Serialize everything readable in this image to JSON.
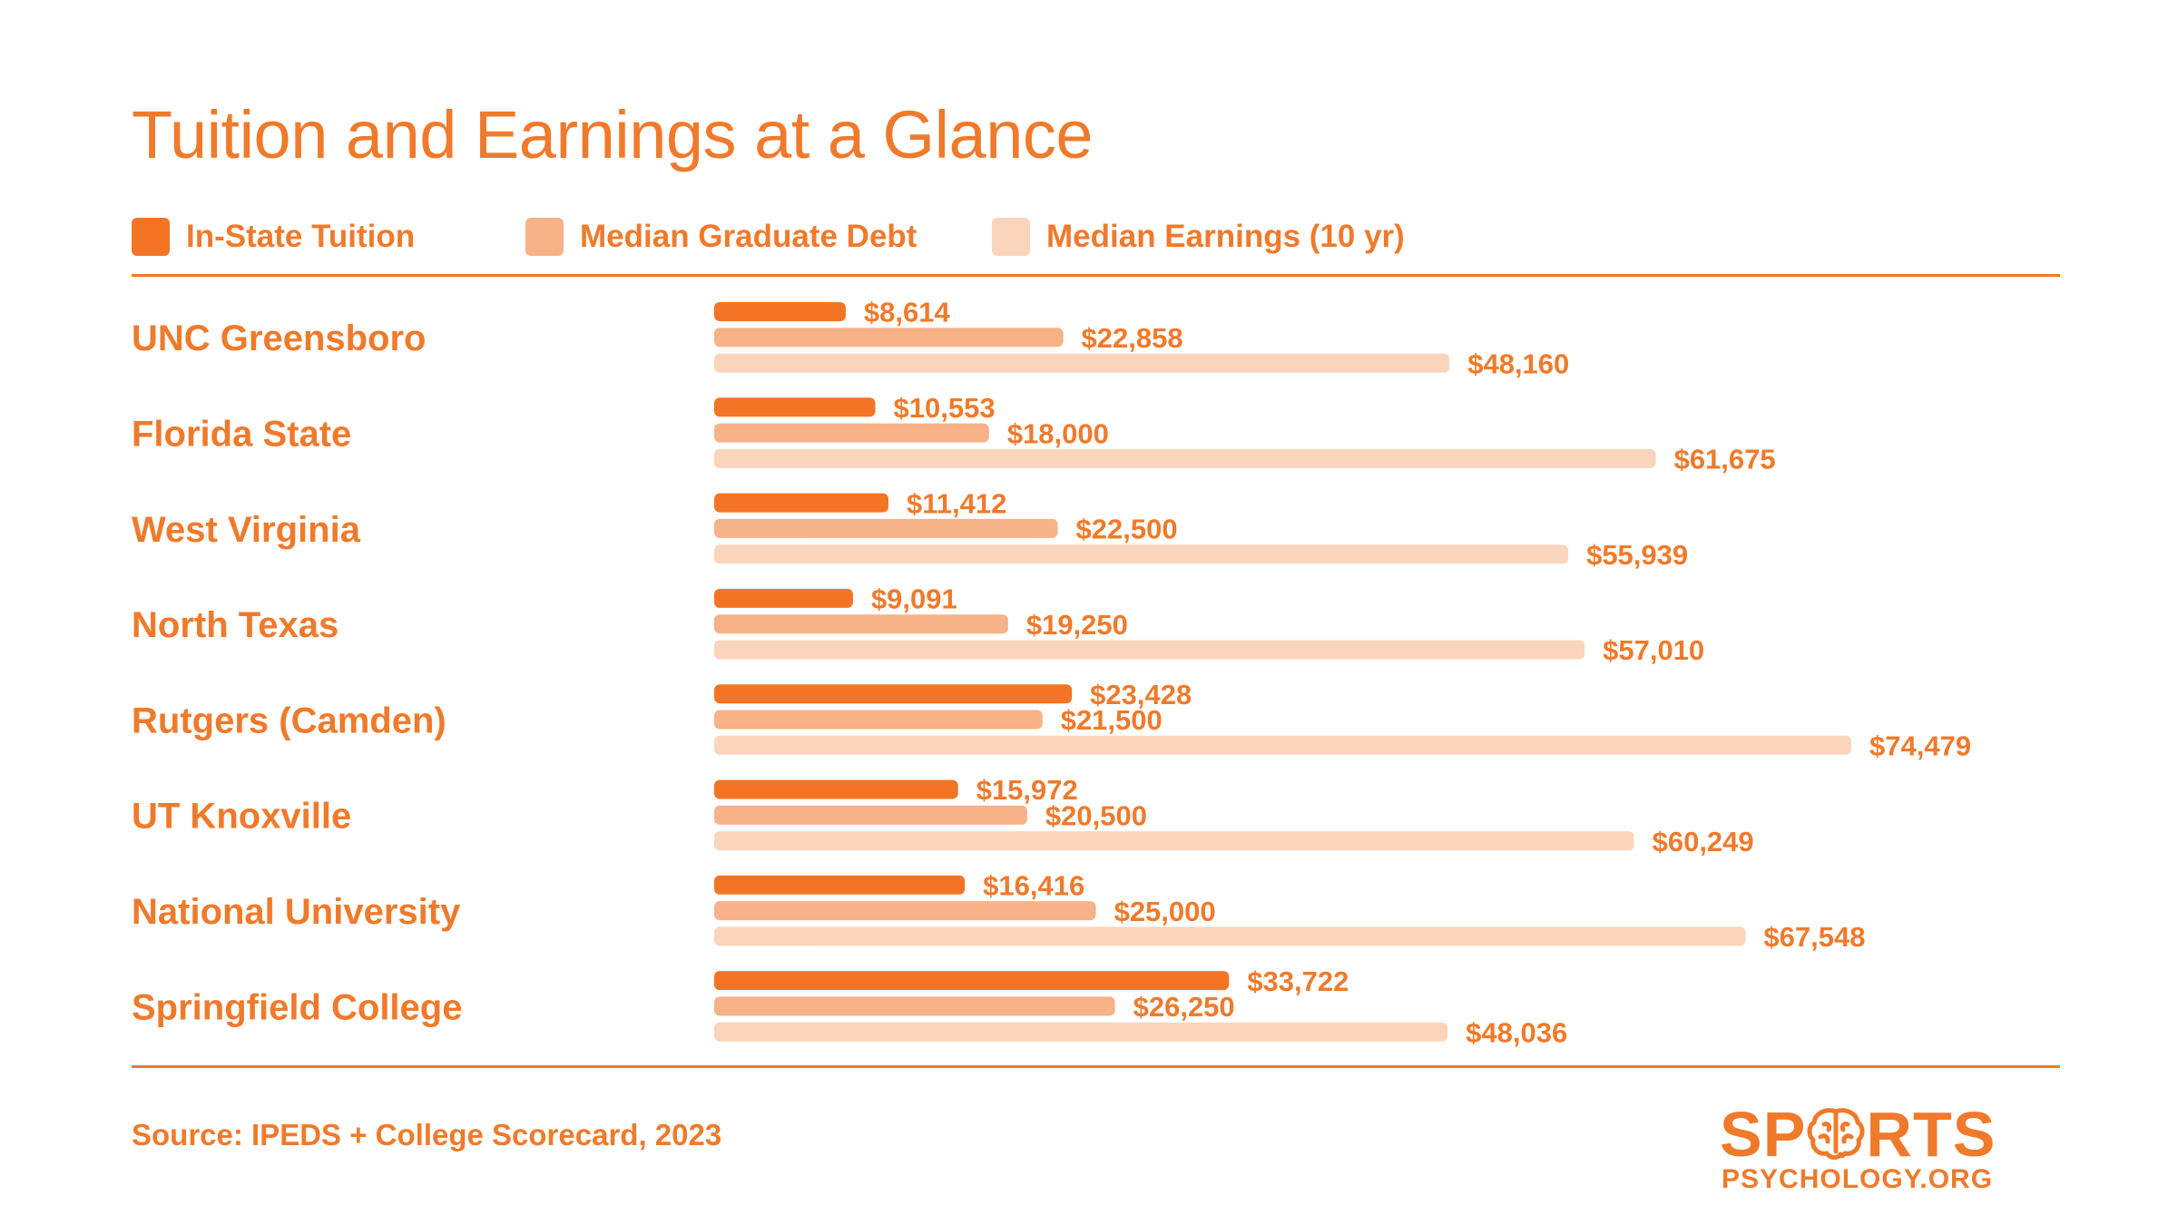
{
  "colors": {
    "accent": "#f07a2b",
    "in_state_tuition": "#f47425",
    "median_graduate_debt": "#f7b288",
    "median_earnings": "#fbd4bc"
  },
  "footer": {
    "source": "Source: IPEDS + College Scorecard, 2023",
    "logo_top_left": "SP",
    "logo_top_right": "RTS",
    "logo_bottom": "PSYCHOLOGY.ORG"
  },
  "chart_data": {
    "type": "bar",
    "orientation": "horizontal",
    "title": "Tuition and Earnings at a Glance",
    "legend_placement": "top",
    "categories": [
      "UNC Greensboro",
      "Florida State",
      "West Virginia",
      "North Texas",
      "Rutgers (Camden)",
      "UT Knoxville",
      "National University",
      "Springfield College"
    ],
    "series": [
      {
        "name": "In-State Tuition",
        "color": "#f47425",
        "values": [
          8614,
          10553,
          11412,
          9091,
          23428,
          15972,
          16416,
          33722
        ],
        "labels": [
          "$8,614",
          "$10,553",
          "$11,412",
          "$9,091",
          "$23,428",
          "$15,972",
          "$16,416",
          "$33,722"
        ]
      },
      {
        "name": "Median Graduate Debt",
        "color": "#f7b288",
        "values": [
          22858,
          18000,
          22500,
          19250,
          21500,
          20500,
          25000,
          26250
        ],
        "labels": [
          "$22,858",
          "$18,000",
          "$22,500",
          "$19,250",
          "$21,500",
          "$20,500",
          "$25,000",
          "$26,250"
        ]
      },
      {
        "name": "Median Earnings (10 yr)",
        "color": "#fbd4bc",
        "values": [
          48160,
          61675,
          55939,
          57010,
          74479,
          60249,
          67548,
          48036
        ],
        "labels": [
          "$48,160",
          "$61,675",
          "$55,939",
          "$57,010",
          "$74,479",
          "$60,249",
          "$67,548",
          "$48,036"
        ]
      }
    ],
    "xlim": [
      0,
      74479
    ],
    "grid": false
  }
}
